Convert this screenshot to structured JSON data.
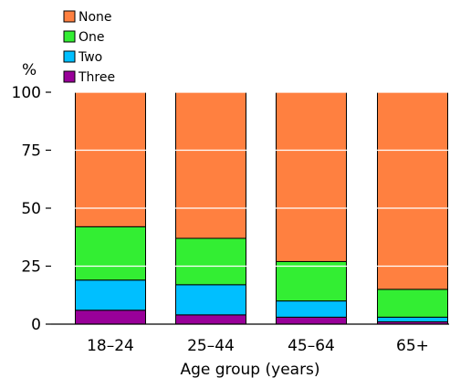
{
  "chart_data": {
    "type": "bar",
    "stacked": true,
    "title": "",
    "ylabel": "%",
    "xlabel": "Age group (years)",
    "ylim": [
      0,
      100
    ],
    "yticks": [
      0,
      25,
      50,
      75,
      100
    ],
    "grid": "horizontal white lines over bars",
    "legend_position": "top-left",
    "categories": [
      "18–24",
      "25–44",
      "45–64",
      "65+"
    ],
    "series": [
      {
        "name": "Three",
        "color": "#990099",
        "values": [
          6,
          4,
          3,
          1
        ]
      },
      {
        "name": "Two",
        "color": "#00bfff",
        "values": [
          13,
          13,
          7,
          2
        ]
      },
      {
        "name": "One",
        "color": "#33ee33",
        "values": [
          23,
          20,
          17,
          12
        ]
      },
      {
        "name": "None",
        "color": "#ff8040",
        "values": [
          58,
          63,
          73,
          85
        ]
      }
    ],
    "legend_order": [
      "None",
      "One",
      "Two",
      "Three"
    ]
  }
}
